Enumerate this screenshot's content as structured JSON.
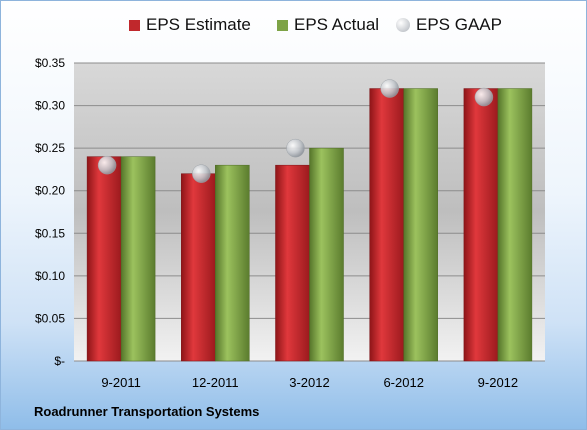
{
  "company_name": "Roadrunner Transportation Systems",
  "chart_data": {
    "type": "bar",
    "categories": [
      "9-2011",
      "12-2011",
      "3-2012",
      "6-2012",
      "9-2012"
    ],
    "series": [
      {
        "name": "EPS Estimate",
        "type": "bar",
        "color": "#c0282c",
        "values": [
          0.24,
          0.22,
          0.23,
          0.32,
          0.32
        ]
      },
      {
        "name": "EPS Actual",
        "type": "bar",
        "color": "#7da346",
        "values": [
          0.24,
          0.23,
          0.25,
          0.32,
          0.32
        ]
      },
      {
        "name": "EPS GAAP",
        "type": "marker",
        "color": "#b8bcc2",
        "values": [
          0.23,
          0.22,
          0.25,
          0.32,
          0.31
        ]
      }
    ],
    "yticks": [
      {
        "value": 0,
        "label": "$-"
      },
      {
        "value": 0.05,
        "label": "$0.05"
      },
      {
        "value": 0.1,
        "label": "$0.10"
      },
      {
        "value": 0.15,
        "label": "$0.15"
      },
      {
        "value": 0.2,
        "label": "$0.20"
      },
      {
        "value": 0.25,
        "label": "$0.25"
      },
      {
        "value": 0.3,
        "label": "$0.30"
      },
      {
        "value": 0.35,
        "label": "$0.35"
      }
    ],
    "ylim": [
      0,
      0.35
    ],
    "grid": true,
    "legend_position": "top"
  }
}
